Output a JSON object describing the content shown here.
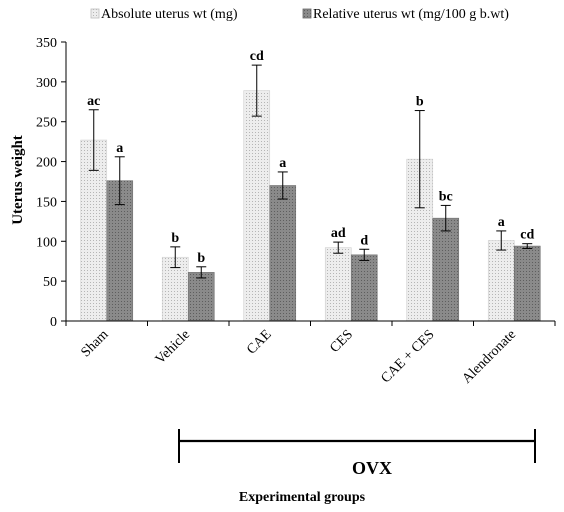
{
  "chart_data": {
    "type": "bar",
    "categories": [
      "Sham",
      "Vehicle",
      "CAE",
      "CES",
      "CAE + CES",
      "Alendronate"
    ],
    "series": [
      {
        "name": "Absolute uterus wt (mg)",
        "values": [
          227,
          80,
          289,
          92,
          203,
          101
        ],
        "errors": [
          38,
          13,
          32,
          7,
          61,
          12
        ],
        "letters": [
          "ac",
          "b",
          "cd",
          "ad",
          "b",
          "a"
        ],
        "color": "#ebebeb"
      },
      {
        "name": "Relative uterus wt (mg/100 g b.wt)",
        "values": [
          176,
          61,
          170,
          83,
          129,
          94
        ],
        "errors": [
          30,
          7,
          17,
          7,
          16,
          3
        ],
        "letters": [
          "a",
          "b",
          "a",
          "d",
          "bc",
          "cd"
        ],
        "color": "#8c8c8c"
      }
    ],
    "ylabel": "Uterus weight",
    "xlabel": "Experimental groups",
    "group_label": "OVX",
    "ylim": [
      0,
      350
    ],
    "yticks": [
      0,
      50,
      100,
      150,
      200,
      250,
      300,
      350
    ],
    "legend_position": "top",
    "grid": false
  }
}
